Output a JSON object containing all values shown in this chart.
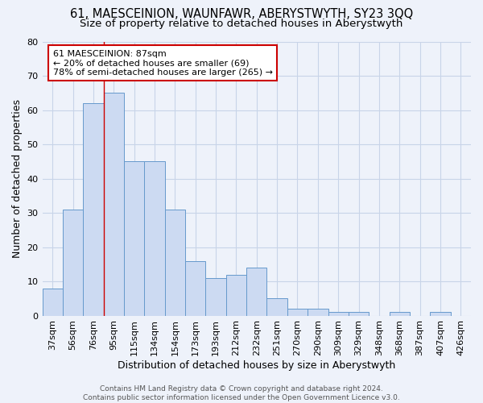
{
  "title": "61, MAESCEINION, WAUNFAWR, ABERYSTWYTH, SY23 3QQ",
  "subtitle": "Size of property relative to detached houses in Aberystwyth",
  "xlabel": "Distribution of detached houses by size in Aberystwyth",
  "ylabel": "Number of detached properties",
  "categories": [
    "37sqm",
    "56sqm",
    "76sqm",
    "95sqm",
    "115sqm",
    "134sqm",
    "154sqm",
    "173sqm",
    "193sqm",
    "212sqm",
    "232sqm",
    "251sqm",
    "270sqm",
    "290sqm",
    "309sqm",
    "329sqm",
    "348sqm",
    "368sqm",
    "387sqm",
    "407sqm",
    "426sqm"
  ],
  "values": [
    8,
    31,
    62,
    65,
    45,
    45,
    31,
    16,
    11,
    12,
    14,
    5,
    2,
    2,
    1,
    1,
    0,
    1,
    0,
    1,
    0
  ],
  "bar_color": "#ccdaf2",
  "bar_edge_color": "#6699cc",
  "grid_color": "#c8d4e8",
  "background_color": "#eef2fa",
  "ylim": [
    0,
    80
  ],
  "yticks": [
    0,
    10,
    20,
    30,
    40,
    50,
    60,
    70,
    80
  ],
  "annotation_line1": "61 MAESCEINION: 87sqm",
  "annotation_line2": "← 20% of detached houses are smaller (69)",
  "annotation_line3": "78% of semi-detached houses are larger (265) →",
  "annotation_box_color": "#ffffff",
  "annotation_box_edge": "#cc0000",
  "red_line_x": 3.0,
  "footer": "Contains HM Land Registry data © Crown copyright and database right 2024.\nContains public sector information licensed under the Open Government Licence v3.0.",
  "title_fontsize": 10.5,
  "subtitle_fontsize": 9.5,
  "ylabel_fontsize": 9,
  "xlabel_fontsize": 9,
  "tick_fontsize": 8,
  "annotation_fontsize": 8,
  "footer_fontsize": 6.5
}
